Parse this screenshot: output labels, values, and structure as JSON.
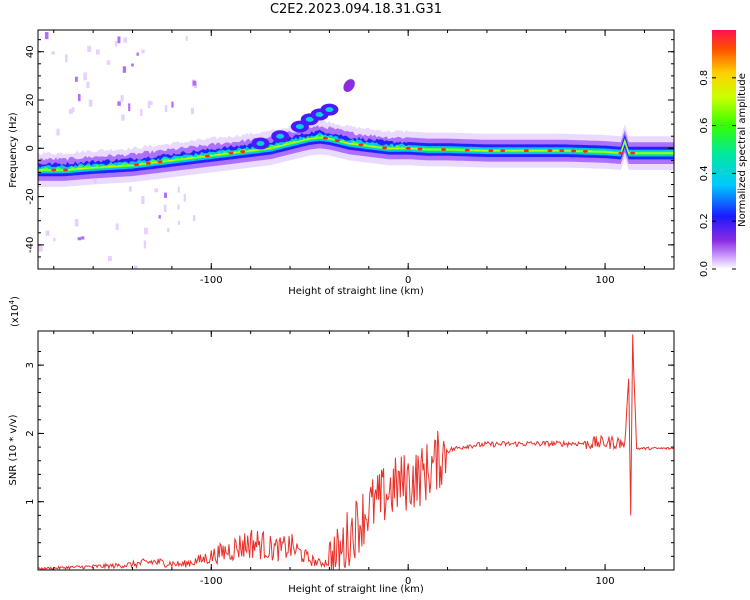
{
  "title": "C2E2.2023.094.18.31.G31",
  "chart_data": [
    {
      "type": "heatmap",
      "xlabel": "Height of straight line (km)",
      "ylabel": "Frequency (Hz)",
      "xlim": [
        -188,
        135
      ],
      "ylim": [
        -50,
        49
      ],
      "xticks": [
        -100,
        0,
        100
      ],
      "yticks": [
        -40,
        -20,
        0,
        20,
        40
      ],
      "ridge": {
        "x": [
          -188,
          -175,
          -160,
          -150,
          -140,
          -130,
          -120,
          -110,
          -100,
          -90,
          -80,
          -70,
          -60,
          -50,
          -45,
          -40,
          -35,
          -30,
          -25,
          -20,
          -15,
          -10,
          -5,
          0,
          10,
          20,
          40,
          60,
          80,
          100,
          108,
          110,
          112,
          120,
          135
        ],
        "y": [
          -9,
          -9,
          -8,
          -7.5,
          -7,
          -6,
          -5,
          -4,
          -3,
          -2,
          -1,
          0,
          2,
          4,
          4.5,
          4,
          3,
          2,
          1.5,
          1,
          0.5,
          0,
          0,
          0,
          -0.5,
          -0.5,
          -1,
          -1,
          -1,
          -1.5,
          -2,
          3,
          -2,
          -2,
          -2
        ]
      },
      "upper_branch": {
        "x": [
          -75,
          -65,
          -55,
          -50,
          -45,
          -40
        ],
        "y": [
          2,
          5,
          9,
          12,
          14,
          16
        ]
      },
      "isolated_blob": {
        "x": -30,
        "y": 26
      },
      "colorbar": {
        "label": "Normalized spectral amplitude",
        "ticks": [
          "0.0",
          "0.2",
          "0.4",
          "0.6",
          "0.8"
        ],
        "range": [
          0,
          1
        ]
      }
    },
    {
      "type": "line",
      "xlabel": "Height of straight line (km)",
      "ylabel": "SNR (10 * v/v)",
      "multiplier": "(x10",
      "multiplier_exp": "4",
      "multiplier_close": ")",
      "xlim": [
        -188,
        135
      ],
      "ylim": [
        0,
        3.5
      ],
      "xticks": [
        -100,
        0,
        100
      ],
      "yticks": [
        1,
        2,
        3
      ],
      "color": "#e8312a",
      "series": [
        {
          "x": [
            -188,
            -170,
            -150,
            -140,
            -130,
            -115,
            -105,
            -95,
            -85,
            -80,
            -75,
            -70,
            -65,
            -60,
            -55,
            -50,
            -45,
            -40,
            -35,
            -30,
            -25,
            -20,
            -15,
            -10,
            -5,
            0,
            5,
            10,
            15,
            20,
            30,
            40,
            60,
            80,
            95,
            105,
            110,
            112,
            113,
            114,
            116,
            120,
            135
          ],
          "y": [
            0.02,
            0.04,
            0.06,
            0.08,
            0.12,
            0.08,
            0.15,
            0.25,
            0.35,
            0.4,
            0.38,
            0.32,
            0.3,
            0.35,
            0.25,
            0.15,
            0.1,
            0.12,
            0.2,
            0.5,
            0.7,
            0.9,
            1.0,
            1.15,
            1.25,
            1.3,
            1.35,
            1.45,
            1.6,
            1.75,
            1.82,
            1.84,
            1.85,
            1.85,
            1.86,
            1.87,
            1.85,
            2.8,
            0.9,
            3.4,
            1.78,
            1.78,
            1.78
          ]
        }
      ]
    }
  ]
}
